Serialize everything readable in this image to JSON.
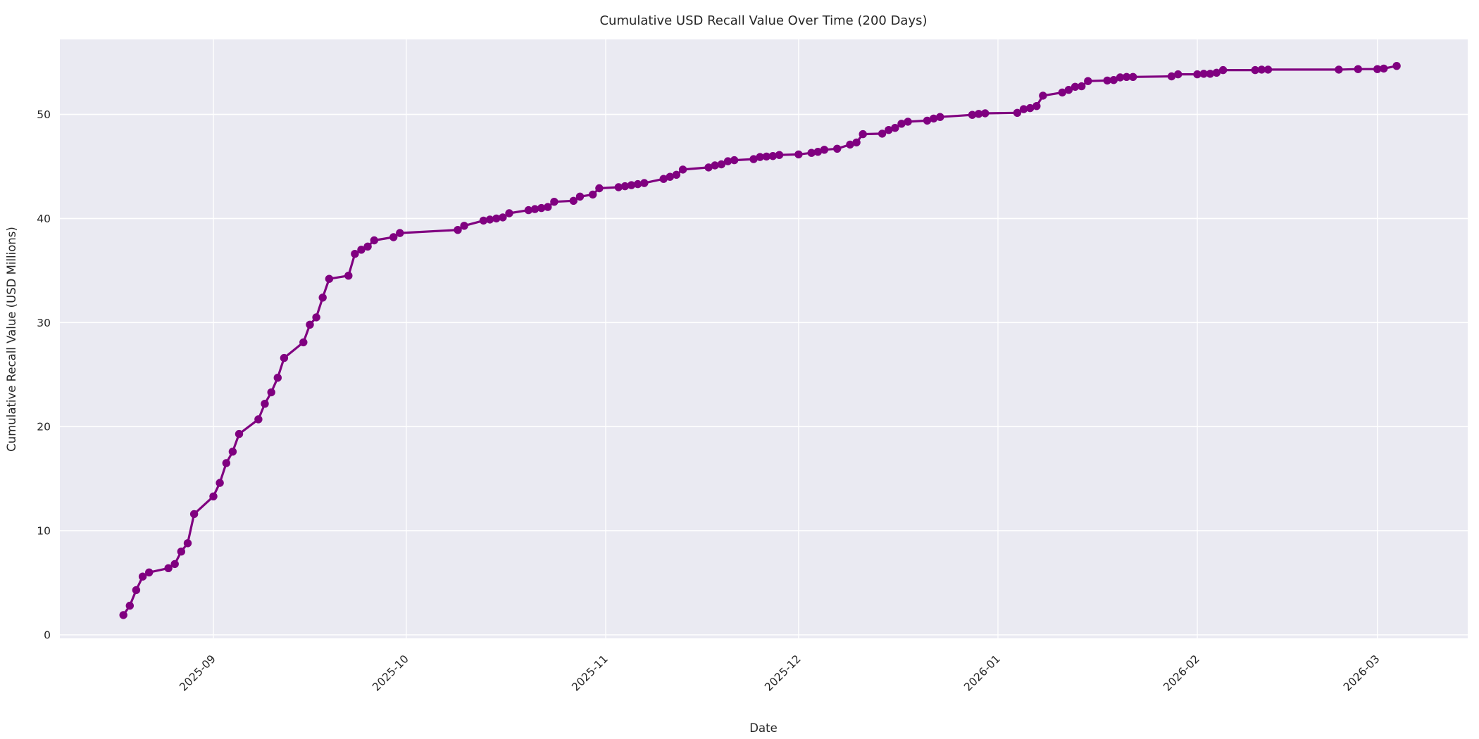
{
  "figure": {
    "background_color": "#ffffff"
  },
  "chart_data": {
    "type": "line",
    "title": "Cumulative USD Recall Value Over Time (200 Days)",
    "xlabel": "Date",
    "ylabel": "Cumulative Recall Value (USD Millions)",
    "legend": "none",
    "grid": "on",
    "plot_background": "#eaeaf2",
    "grid_color": "#ffffff",
    "line_color": "#800080",
    "marker": "circle",
    "marker_color": "#800080",
    "ylim": [
      -0.35,
      57.2
    ],
    "y_ticks": [
      0,
      10,
      20,
      30,
      40,
      50
    ],
    "x_ticks": [
      {
        "date": "2025-09-01",
        "label": "2025-09"
      },
      {
        "date": "2025-10-01",
        "label": "2025-10"
      },
      {
        "date": "2025-11-01",
        "label": "2025-11"
      },
      {
        "date": "2025-12-01",
        "label": "2025-12"
      },
      {
        "date": "2026-01-01",
        "label": "2026-01"
      },
      {
        "date": "2026-02-01",
        "label": "2026-02"
      },
      {
        "date": "2026-03-01",
        "label": "2026-03"
      }
    ],
    "x_range": [
      "2025-08-18",
      "2026-03-04"
    ],
    "points": [
      [
        "2025-08-18",
        1.9
      ],
      [
        "2025-08-19",
        2.8
      ],
      [
        "2025-08-20",
        4.3
      ],
      [
        "2025-08-21",
        5.6
      ],
      [
        "2025-08-22",
        6.0
      ],
      [
        "2025-08-25",
        6.4
      ],
      [
        "2025-08-26",
        6.8
      ],
      [
        "2025-08-27",
        8.0
      ],
      [
        "2025-08-28",
        8.8
      ],
      [
        "2025-08-29",
        11.6
      ],
      [
        "2025-09-01",
        13.3
      ],
      [
        "2025-09-02",
        14.6
      ],
      [
        "2025-09-03",
        16.5
      ],
      [
        "2025-09-04",
        17.6
      ],
      [
        "2025-09-05",
        19.3
      ],
      [
        "2025-09-08",
        20.7
      ],
      [
        "2025-09-09",
        22.2
      ],
      [
        "2025-09-10",
        23.3
      ],
      [
        "2025-09-11",
        24.7
      ],
      [
        "2025-09-12",
        26.6
      ],
      [
        "2025-09-15",
        28.1
      ],
      [
        "2025-09-16",
        29.8
      ],
      [
        "2025-09-17",
        30.5
      ],
      [
        "2025-09-18",
        32.4
      ],
      [
        "2025-09-19",
        34.2
      ],
      [
        "2025-09-22",
        34.5
      ],
      [
        "2025-09-23",
        36.6
      ],
      [
        "2025-09-24",
        37.0
      ],
      [
        "2025-09-25",
        37.3
      ],
      [
        "2025-09-26",
        37.9
      ],
      [
        "2025-09-29",
        38.2
      ],
      [
        "2025-09-30",
        38.6
      ],
      [
        "2025-10-09",
        38.9
      ],
      [
        "2025-10-10",
        39.3
      ],
      [
        "2025-10-13",
        39.8
      ],
      [
        "2025-10-14",
        39.9
      ],
      [
        "2025-10-15",
        40.0
      ],
      [
        "2025-10-16",
        40.1
      ],
      [
        "2025-10-17",
        40.5
      ],
      [
        "2025-10-20",
        40.8
      ],
      [
        "2025-10-21",
        40.9
      ],
      [
        "2025-10-22",
        41.0
      ],
      [
        "2025-10-23",
        41.1
      ],
      [
        "2025-10-24",
        41.6
      ],
      [
        "2025-10-27",
        41.7
      ],
      [
        "2025-10-28",
        42.1
      ],
      [
        "2025-10-30",
        42.3
      ],
      [
        "2025-10-31",
        42.9
      ],
      [
        "2025-11-03",
        43.0
      ],
      [
        "2025-11-04",
        43.1
      ],
      [
        "2025-11-05",
        43.2
      ],
      [
        "2025-11-06",
        43.3
      ],
      [
        "2025-11-07",
        43.4
      ],
      [
        "2025-11-10",
        43.8
      ],
      [
        "2025-11-11",
        44.0
      ],
      [
        "2025-11-12",
        44.2
      ],
      [
        "2025-11-13",
        44.7
      ],
      [
        "2025-11-17",
        44.9
      ],
      [
        "2025-11-18",
        45.1
      ],
      [
        "2025-11-19",
        45.2
      ],
      [
        "2025-11-20",
        45.5
      ],
      [
        "2025-11-21",
        45.6
      ],
      [
        "2025-11-24",
        45.7
      ],
      [
        "2025-11-25",
        45.9
      ],
      [
        "2025-11-26",
        45.95
      ],
      [
        "2025-11-27",
        46.0
      ],
      [
        "2025-11-28",
        46.1
      ],
      [
        "2025-12-01",
        46.15
      ],
      [
        "2025-12-03",
        46.3
      ],
      [
        "2025-12-04",
        46.4
      ],
      [
        "2025-12-05",
        46.6
      ],
      [
        "2025-12-07",
        46.7
      ],
      [
        "2025-12-09",
        47.1
      ],
      [
        "2025-12-10",
        47.3
      ],
      [
        "2025-12-11",
        48.1
      ],
      [
        "2025-12-14",
        48.15
      ],
      [
        "2025-12-15",
        48.5
      ],
      [
        "2025-12-16",
        48.7
      ],
      [
        "2025-12-17",
        49.1
      ],
      [
        "2025-12-18",
        49.3
      ],
      [
        "2025-12-21",
        49.4
      ],
      [
        "2025-12-22",
        49.6
      ],
      [
        "2025-12-23",
        49.75
      ],
      [
        "2025-12-28",
        49.95
      ],
      [
        "2025-12-29",
        50.05
      ],
      [
        "2025-12-30",
        50.1
      ],
      [
        "2026-01-04",
        50.15
      ],
      [
        "2026-01-05",
        50.5
      ],
      [
        "2026-01-06",
        50.6
      ],
      [
        "2026-01-07",
        50.8
      ],
      [
        "2026-01-08",
        51.8
      ],
      [
        "2026-01-11",
        52.1
      ],
      [
        "2026-01-12",
        52.35
      ],
      [
        "2026-01-13",
        52.65
      ],
      [
        "2026-01-14",
        52.7
      ],
      [
        "2026-01-15",
        53.2
      ],
      [
        "2026-01-18",
        53.25
      ],
      [
        "2026-01-19",
        53.3
      ],
      [
        "2026-01-20",
        53.55
      ],
      [
        "2026-01-21",
        53.6
      ],
      [
        "2026-01-22",
        53.6
      ],
      [
        "2026-01-28",
        53.65
      ],
      [
        "2026-01-29",
        53.85
      ],
      [
        "2026-02-01",
        53.85
      ],
      [
        "2026-02-02",
        53.9
      ],
      [
        "2026-02-03",
        53.9
      ],
      [
        "2026-02-04",
        54.0
      ],
      [
        "2026-02-05",
        54.25
      ],
      [
        "2026-02-10",
        54.25
      ],
      [
        "2026-02-11",
        54.3
      ],
      [
        "2026-02-12",
        54.3
      ],
      [
        "2026-02-23",
        54.3
      ],
      [
        "2026-02-26",
        54.35
      ],
      [
        "2026-03-01",
        54.35
      ],
      [
        "2026-03-02",
        54.4
      ],
      [
        "2026-03-04",
        54.65
      ]
    ]
  }
}
